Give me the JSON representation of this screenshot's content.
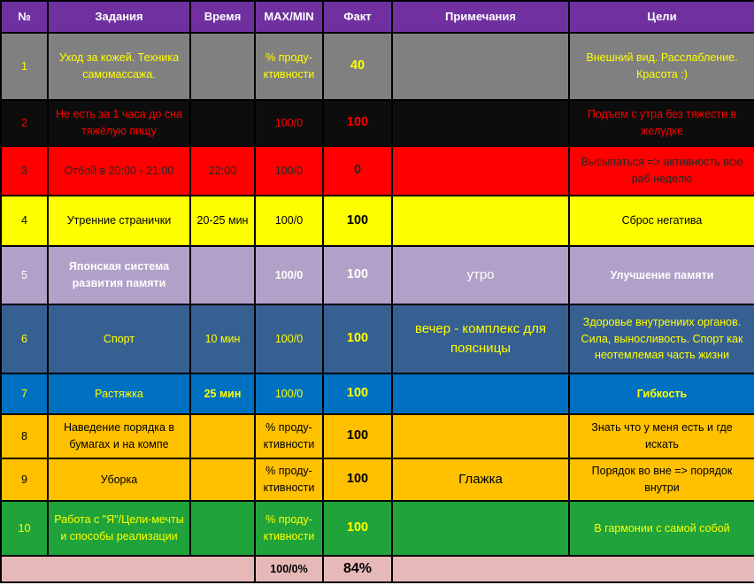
{
  "headers": [
    "№",
    "Задания",
    "Время",
    "MAX/MIN",
    "Факт",
    "Примечания",
    "Цели"
  ],
  "rows": [
    {
      "num": "1",
      "task": "Уход за кожей. Техника самомассажа.",
      "time": "",
      "maxmin": "% проду-ктивности",
      "fact": "40",
      "note": "",
      "goal": "Внешний вид. Расслабление. Красота :)",
      "bg": "#808080",
      "fg": "#ffff00",
      "factfg": "#ffff00"
    },
    {
      "num": "2",
      "task": "Не есть за 1 часа до сна тяжёлую пищу",
      "time": "",
      "maxmin": "100/0",
      "fact": "100",
      "note": "",
      "goal": "Подъем с утра без тяжести в желудке",
      "bg": "#0d0d0d",
      "fg": "#ff0000",
      "factfg": "#ff0000"
    },
    {
      "num": "3",
      "task": "Отбой в 20:00 - 21:00",
      "time": "22:00",
      "maxmin": "100/0",
      "fact": "0",
      "note": "",
      "goal": "Высыпаться => активность всю раб.неделю",
      "bg": "#ff0000",
      "fg": "#262626",
      "factfg": "#262626"
    },
    {
      "num": "4",
      "task": "Утренние странички",
      "time": "20-25 мин",
      "maxmin": "100/0",
      "fact": "100",
      "note": "",
      "goal": "Сброс негатива",
      "bg": "#ffff00",
      "fg": "#000000",
      "factfg": "#000000"
    },
    {
      "num": "5",
      "task": "Японская система развития памяти",
      "time": "",
      "maxmin": "100/0",
      "fact": "100",
      "note": "утро",
      "goal": "Улучшение памяти",
      "bg": "#b1a0c7",
      "fg": "#ffffff",
      "factfg": "#ffffff"
    },
    {
      "num": "6",
      "task": "Спорт",
      "time": "10 мин",
      "maxmin": "100/0",
      "fact": "100",
      "note": "вечер - комплекс для поясницы",
      "goal": "Здоровье внутрениих органов. Сила, выносливость. Спорт как неотемлемая часть жизни",
      "bg": "#376092",
      "fg": "#ffff00",
      "factfg": "#ffff00"
    },
    {
      "num": "7",
      "task": "Растяжка",
      "time": "25 мин",
      "maxmin": "100/0",
      "fact": "100",
      "note": "",
      "goal": "Гибкость",
      "bg": "#0070c0",
      "fg": "#ffff00",
      "factfg": "#ffff00"
    },
    {
      "num": "8",
      "task": "Наведение порядка в бумагах и на компе",
      "time": "",
      "maxmin": "% проду-ктивности",
      "fact": "100",
      "note": "",
      "goal": "Знать что у меня есть и где искать",
      "bg": "#ffc000",
      "fg": "#000000",
      "factfg": "#000000"
    },
    {
      "num": "9",
      "task": "Уборка",
      "time": "",
      "maxmin": "% проду-ктивности",
      "fact": "100",
      "note": "Глажка",
      "goal": "Порядок во вне => порядок внутри",
      "bg": "#ffc000",
      "fg": "#000000",
      "factfg": "#000000"
    },
    {
      "num": "10",
      "task": "Работа с \"Я\"/Цели-мечты и способы реализации",
      "time": "",
      "maxmin": "% проду-ктивности",
      "fact": "100",
      "note": "",
      "goal": "В гармонии с самой собой",
      "bg": "#1fa33a",
      "fg": "#ffff00",
      "factfg": "#ffff00"
    }
  ],
  "total": {
    "maxmin": "100/0%",
    "fact": "84%",
    "bg": "#e6b8b7"
  },
  "colors": {
    "header_bg": "#7030a0",
    "header_fg": "#ffffff"
  }
}
